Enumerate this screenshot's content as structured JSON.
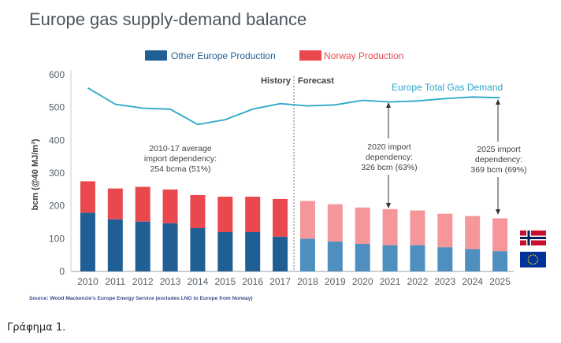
{
  "chart_data": {
    "type": "bar",
    "title": "Europe gas supply-demand balance",
    "ylabel": "bcm (@40 MJ/m³)",
    "ylim": [
      0,
      600
    ],
    "yticks": [
      "0",
      "100",
      "200",
      "300",
      "400",
      "500",
      "600"
    ],
    "categories": [
      "2010",
      "2011",
      "2012",
      "2013",
      "2014",
      "2015",
      "2016",
      "2017",
      "2018",
      "2019",
      "2020",
      "2021",
      "2022",
      "2023",
      "2024",
      "2025"
    ],
    "series": [
      {
        "name": "Other Europe Production",
        "color": "#1f5f94",
        "forecast_color": "#4f8fbf",
        "values": [
          179,
          159,
          152,
          147,
          132,
          120,
          120,
          106,
          100,
          91,
          84,
          80,
          80,
          74,
          68,
          62
        ]
      },
      {
        "name": "Norway Production",
        "color": "#e9494e",
        "forecast_color": "#f5979a",
        "values": [
          96,
          94,
          106,
          103,
          101,
          108,
          108,
          115,
          115,
          114,
          111,
          110,
          106,
          102,
          101,
          100
        ]
      }
    ],
    "line": {
      "name": "Europe Total Gas Demand",
      "color": "#2aa7c9",
      "values": [
        560,
        510,
        498,
        495,
        448,
        463,
        495,
        512,
        505,
        508,
        522,
        517,
        520,
        527,
        532,
        530
      ]
    },
    "history_label": "History",
    "forecast_label": "Forecast",
    "forecast_start_index": 8,
    "annotations": [
      {
        "lines": [
          "2010-17 average",
          "import dependency:",
          "254 bcma (51%)"
        ]
      },
      {
        "lines": [
          "2020 import",
          "dependency:",
          "326 bcm (63%)"
        ]
      },
      {
        "lines": [
          "2025 import",
          "dependency:",
          "369 bcm (69%)"
        ]
      }
    ],
    "source": "Source: Wood Mackenzie's Europe Energy Service (excludes LNG to Europe from Norway)"
  },
  "caption": "Γράφημα 1.",
  "flags": [
    "norway-flag",
    "eu-flag"
  ]
}
